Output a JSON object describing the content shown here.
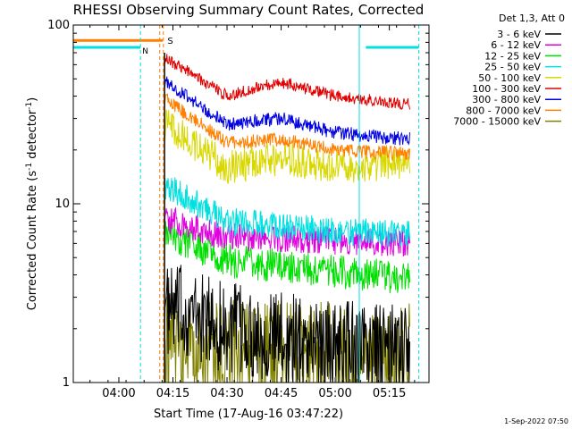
{
  "chart_data": {
    "type": "line",
    "title": "RHESSI Observing Summary Count Rates, Corrected",
    "xlabel": "Start Time (17-Aug-16 03:47:22)",
    "ylabel": "Corrected Count Rate (s⁻¹ detector⁻¹)",
    "ylabel_parts": {
      "main": "Corrected Count Rate (s",
      "exp1": "-1",
      "mid": " detector",
      "exp2": "-1",
      "end": ")"
    },
    "yscale": "log",
    "ylim": [
      1,
      100
    ],
    "xlim": [
      "03:47:22",
      "05:26:00"
    ],
    "x_ticks": [
      "04:00",
      "04:15",
      "04:30",
      "04:45",
      "05:00",
      "05:15"
    ],
    "y_ticks": [
      "1",
      "10",
      "100"
    ],
    "legend_header": "Det 1,3, Att 0",
    "legend_position": "right",
    "series": [
      {
        "name": "3 - 6 keV",
        "color": "#000000",
        "values": [
          [
            4.3,
            2.5
          ],
          [
            4.5,
            2.0
          ],
          [
            5.0,
            1.6
          ],
          [
            5.3,
            1.5
          ]
        ]
      },
      {
        "name": "6 - 12 keV",
        "color": "#e000e0",
        "values": [
          [
            4.25,
            8.0
          ],
          [
            4.5,
            6.5
          ],
          [
            5.0,
            6.2
          ],
          [
            5.33,
            6.0
          ]
        ]
      },
      {
        "name": "12 - 25 keV",
        "color": "#00e000",
        "values": [
          [
            4.25,
            6.5
          ],
          [
            4.5,
            4.8
          ],
          [
            5.0,
            4.2
          ],
          [
            5.33,
            3.8
          ]
        ]
      },
      {
        "name": "25 - 50 keV",
        "color": "#00e0e0",
        "values": [
          [
            4.25,
            12.0
          ],
          [
            4.5,
            8.0
          ],
          [
            5.0,
            7.0
          ],
          [
            5.33,
            6.8
          ]
        ]
      },
      {
        "name": "50 - 100 keV",
        "color": "#d8d800",
        "values": [
          [
            4.22,
            28.0
          ],
          [
            4.5,
            16.0
          ],
          [
            4.75,
            18.0
          ],
          [
            5.0,
            16.0
          ],
          [
            5.33,
            17.0
          ]
        ]
      },
      {
        "name": "100 - 300 keV",
        "color": "#e00000",
        "values": [
          [
            4.22,
            65.0
          ],
          [
            4.5,
            40.0
          ],
          [
            4.75,
            48.0
          ],
          [
            5.0,
            40.0
          ],
          [
            5.33,
            36.0
          ]
        ]
      },
      {
        "name": "300 - 800 keV",
        "color": "#0000e0",
        "values": [
          [
            4.22,
            48.0
          ],
          [
            4.5,
            28.0
          ],
          [
            4.75,
            30.0
          ],
          [
            5.0,
            25.0
          ],
          [
            5.33,
            23.0
          ]
        ]
      },
      {
        "name": "800 - 7000 keV",
        "color": "#ff8000",
        "values": [
          [
            4.22,
            38.0
          ],
          [
            4.5,
            22.0
          ],
          [
            4.75,
            23.0
          ],
          [
            5.0,
            20.0
          ],
          [
            5.33,
            19.0
          ]
        ]
      },
      {
        "name": "7000 - 15000 keV",
        "color": "#808000",
        "values": [
          [
            4.25,
            1.6
          ],
          [
            4.5,
            1.5
          ],
          [
            5.0,
            1.4
          ],
          [
            5.33,
            1.4
          ]
        ]
      }
    ],
    "annotations": [
      "S",
      "N"
    ]
  },
  "footer": {
    "date": "1-Sep-2022 07:50"
  }
}
